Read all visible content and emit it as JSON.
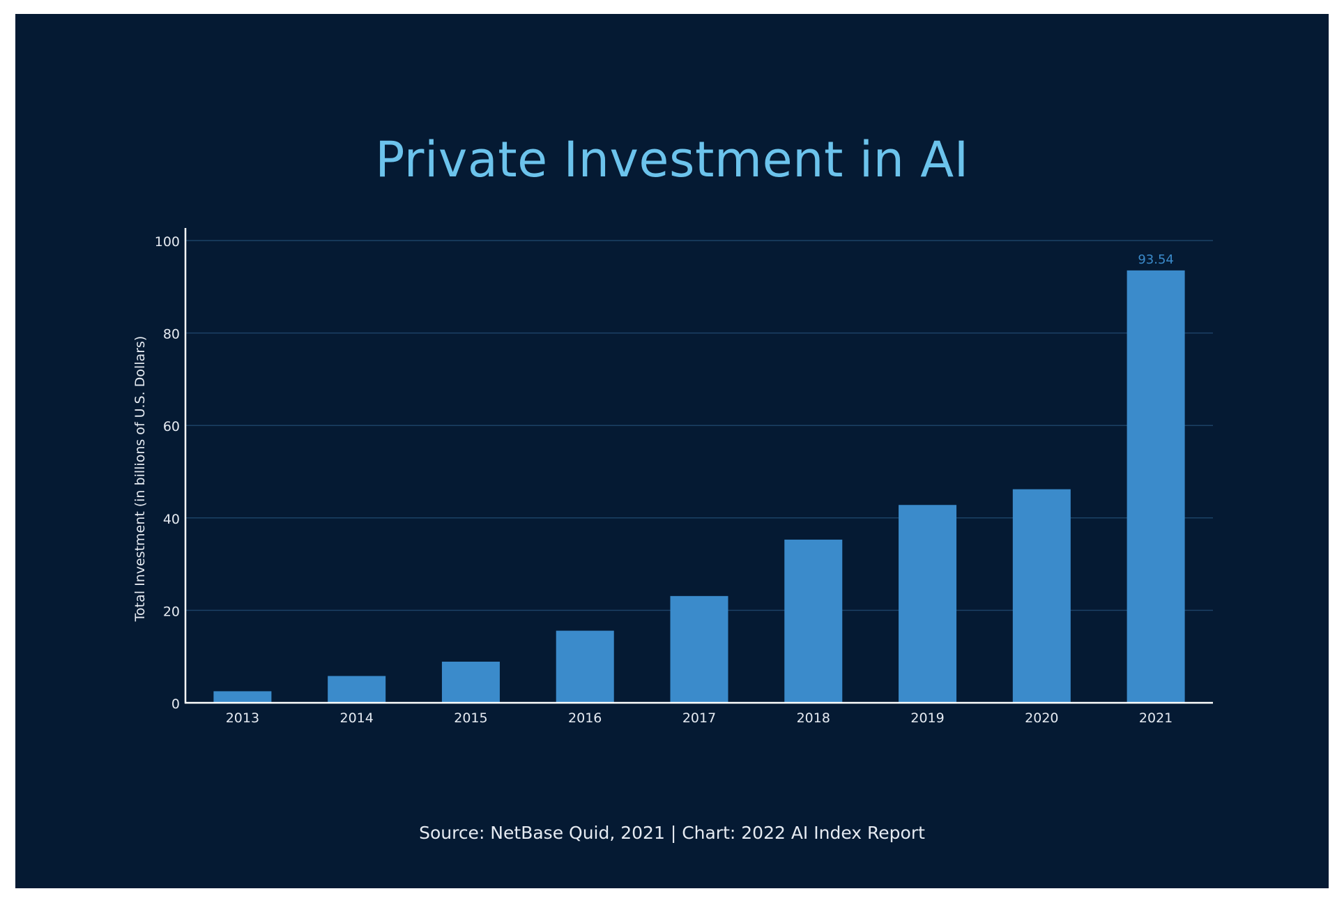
{
  "chart_data": {
    "type": "bar",
    "title": "Private Investment in AI",
    "xlabel": "",
    "ylabel": "Total Investment (in billions of U.S. Dollars)",
    "categories": [
      "2013",
      "2014",
      "2015",
      "2016",
      "2017",
      "2018",
      "2019",
      "2020",
      "2021"
    ],
    "values": [
      2.5,
      5.8,
      8.9,
      15.6,
      23.1,
      35.3,
      42.8,
      46.2,
      93.54
    ],
    "ylim": [
      0,
      100
    ],
    "yticks": [
      "0",
      "20",
      "40",
      "60",
      "80",
      "100"
    ],
    "data_labels": [
      {
        "category": "2021",
        "text": "93.54"
      }
    ],
    "grid": true,
    "source": "Source: NetBase Quid, 2021 | Chart: 2022 AI Index Report",
    "colors": {
      "background": "#051a33",
      "bar": "#3b8bcb",
      "title": "#6cc3ec",
      "gridline": "#1c4266",
      "axis": "#ffffff",
      "tick_text": "#e6ebf2",
      "data_label": "#3b8bcb"
    }
  }
}
